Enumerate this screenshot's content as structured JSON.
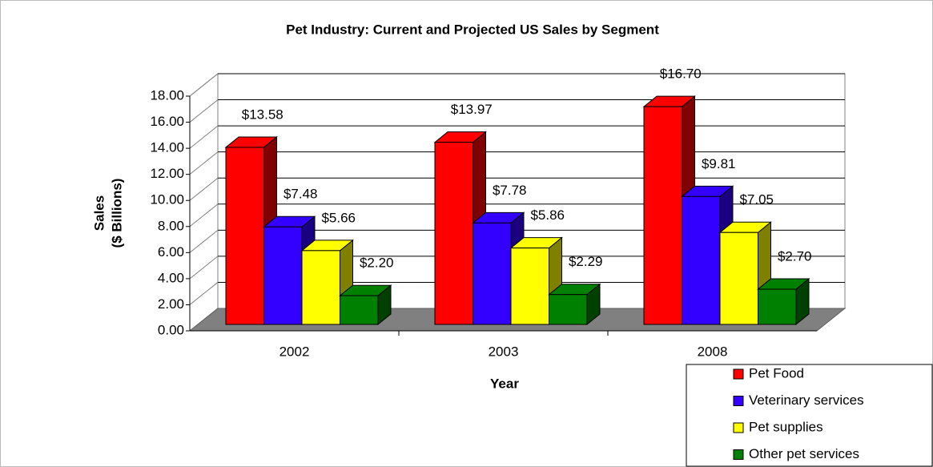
{
  "chart_data": {
    "type": "bar3d",
    "title": "Pet Industry: Current and Projected US Sales by Segment",
    "x_label": "Year",
    "y_label": [
      "Sales",
      "($ Billions)"
    ],
    "categories": [
      "2002",
      "2003",
      "2008"
    ],
    "series": [
      {
        "name": "Pet Food",
        "color": "#ff0000",
        "side": "#800000",
        "values": [
          13.58,
          13.97,
          16.7
        ],
        "value_labels": [
          "$13.58",
          "$13.97",
          "$16.70"
        ]
      },
      {
        "name": "Veterinary services",
        "color": "#3300ff",
        "side": "#1a0080",
        "values": [
          7.48,
          7.78,
          9.81
        ],
        "value_labels": [
          "$7.48",
          "$7.78",
          "$9.81"
        ]
      },
      {
        "name": "Pet supplies",
        "color": "#ffff00",
        "side": "#808000",
        "values": [
          5.66,
          5.86,
          7.05
        ],
        "value_labels": [
          "$5.66",
          "$5.86",
          "$7.05"
        ]
      },
      {
        "name": "Other pet services",
        "color": "#008000",
        "side": "#004000",
        "values": [
          2.2,
          2.29,
          2.7
        ],
        "value_labels": [
          "$2.20",
          "$2.29",
          "$2.70"
        ]
      }
    ],
    "ylim": [
      0,
      18
    ],
    "yticks": [
      {
        "value": 0,
        "label": "0.00"
      },
      {
        "value": 2,
        "label": "2.00"
      },
      {
        "value": 4,
        "label": "4.00"
      },
      {
        "value": 6,
        "label": "6.00"
      },
      {
        "value": 8,
        "label": "8.00"
      },
      {
        "value": 10,
        "label": "10.00"
      },
      {
        "value": 12,
        "label": "12.00"
      },
      {
        "value": 14,
        "label": "14.00"
      },
      {
        "value": 16,
        "label": "16.00"
      },
      {
        "value": 18,
        "label": "18.00"
      }
    ],
    "grid": true,
    "legend": "bottom-right"
  }
}
